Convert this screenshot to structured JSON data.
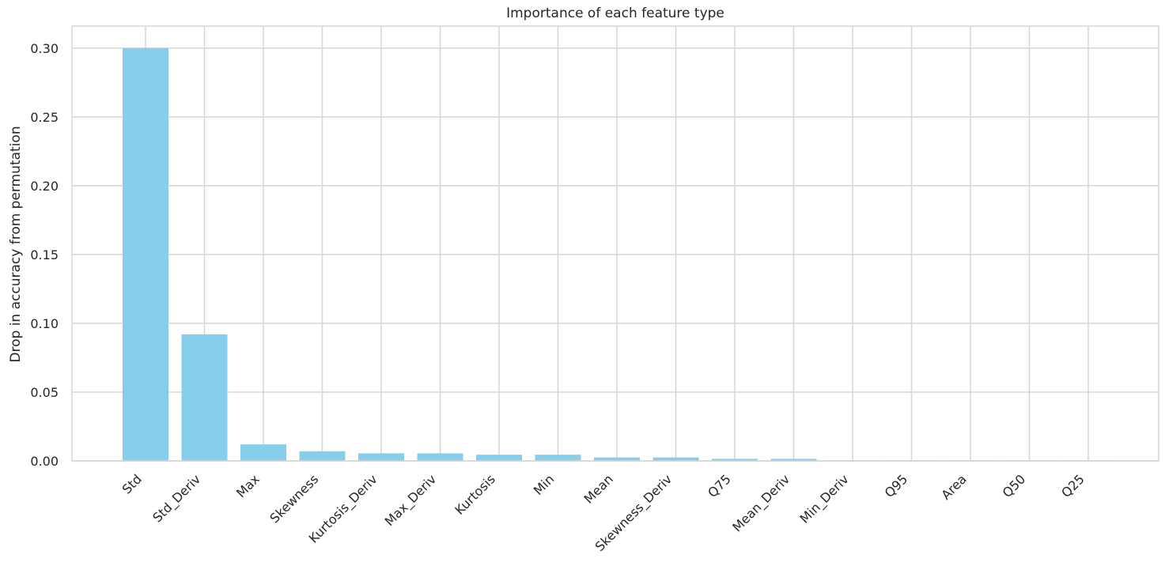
{
  "chart_data": {
    "type": "bar",
    "title": "Importance of each feature type",
    "xlabel": "",
    "ylabel": "Drop in accuracy from permutation",
    "categories": [
      "Std",
      "Std_Deriv",
      "Max",
      "Skewness",
      "Kurtosis_Deriv",
      "Max_Deriv",
      "Kurtosis",
      "Min",
      "Mean",
      "Skewness_Deriv",
      "Q75",
      "Mean_Deriv",
      "Min_Deriv",
      "Q95",
      "Area",
      "Q50",
      "Q25"
    ],
    "values": [
      0.3,
      0.092,
      0.012,
      0.007,
      0.0055,
      0.0055,
      0.0045,
      0.0045,
      0.0025,
      0.0025,
      0.0015,
      0.0015,
      0.0005,
      0.0003,
      0.0002,
      0.0001,
      0.0001
    ],
    "ylim": [
      0,
      0.316
    ],
    "yticks": [
      "0.00",
      "0.05",
      "0.10",
      "0.15",
      "0.20",
      "0.25",
      "0.30"
    ],
    "ytick_values": [
      0,
      0.05,
      0.1,
      0.15,
      0.2,
      0.25,
      0.3
    ],
    "grid": true,
    "bar_color": "#87ceeb",
    "grid_color": "#d5d5d5"
  }
}
